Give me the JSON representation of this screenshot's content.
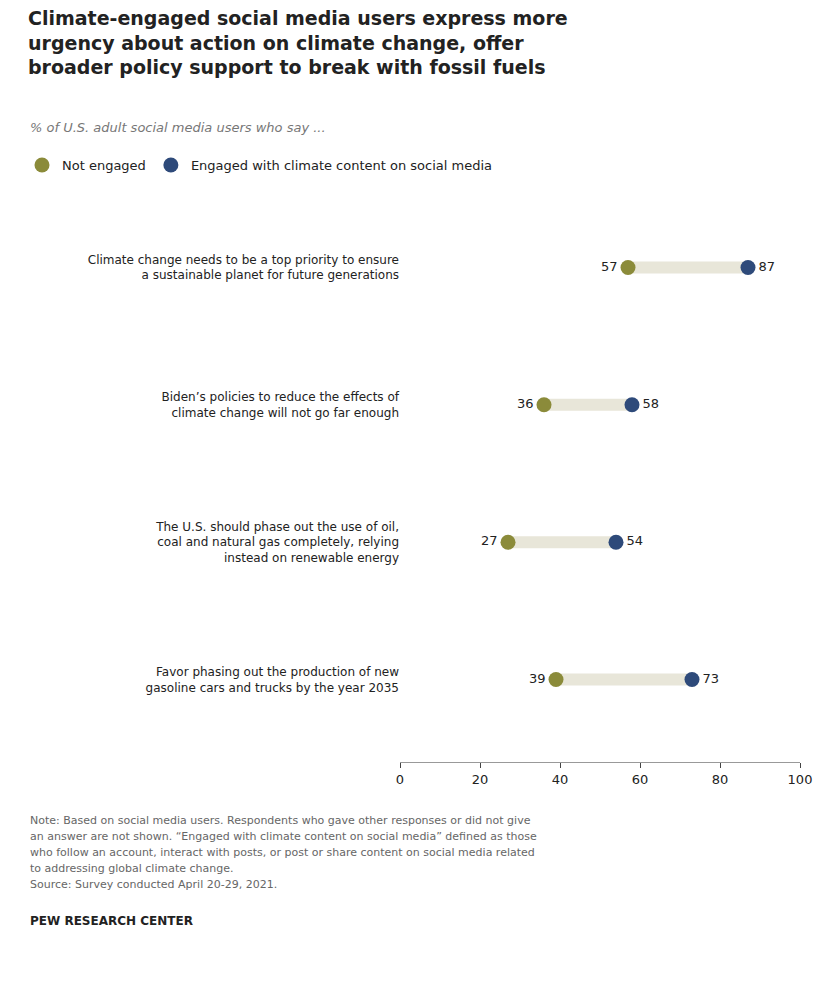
{
  "chart_data": {
    "type": "dumbbell",
    "title": "Climate-engaged social media users express more\nurgency about action on climate change, offer\nbroader policy support to break with fossil fuels",
    "subtitle": "% of U.S. adult social media users who say ...",
    "categories": [
      "Climate change needs to be a top priority to ensure\na sustainable planet for future generations",
      "Biden’s policies to reduce the effects of\nclimate change will not go far enough",
      "The U.S. should phase out the use of oil,\ncoal and natural gas completely, relying\ninstead on renewable energy",
      "Favor phasing out the production of new\ngasoline cars and trucks by the year 2035"
    ],
    "series": [
      {
        "name": "Not engaged",
        "color": "#8b8b3a",
        "values": [
          57,
          36,
          27,
          39
        ]
      },
      {
        "name": "Engaged with climate content on social media",
        "color": "#2e4a7a",
        "values": [
          87,
          58,
          54,
          73
        ]
      }
    ],
    "color": "#e8e6d9",
    "orientation": "horizontal",
    "xlim": [
      0,
      100
    ],
    "xticks": [
      0,
      20,
      40,
      60,
      80,
      100
    ],
    "grid": false,
    "legend": "top left",
    "data_labels": true,
    "annotations": [
      "Note: Based on social media users. Respondents who gave other responses or did not give",
      "an answer are not shown. “Engaged with climate content on social media” defined as those",
      "who follow an account, interact with posts, or post or share content on social media related",
      "to addressing global climate change.",
      "Source: Survey conducted April 20-29, 2021.",
      "PEW RESEARCH CENTER"
    ]
  }
}
